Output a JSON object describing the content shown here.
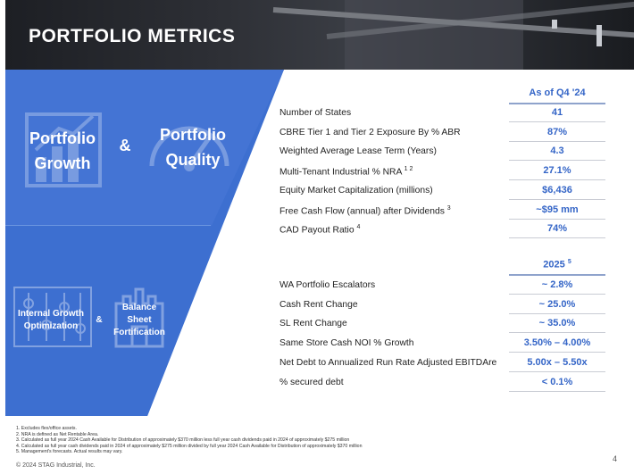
{
  "header": {
    "title": "PORTFOLIO METRICS"
  },
  "left_panel": {
    "portfolio_growth": [
      "Portfolio",
      "Growth"
    ],
    "ampersand_top": "&",
    "portfolio_quality": [
      "Portfolio",
      "Quality"
    ],
    "internal_growth": [
      "Internal Growth",
      "Optimization"
    ],
    "ampersand_bottom": "&",
    "balance_sheet": [
      "Balance",
      "Sheet",
      "Fortification"
    ]
  },
  "table_q4": {
    "heading": "As of Q4 '24",
    "rows": [
      {
        "label": "Number of States",
        "sup": "",
        "value": "41"
      },
      {
        "label": "CBRE Tier 1 and Tier 2 Exposure By % ABR",
        "sup": "",
        "value": "87%"
      },
      {
        "label": "Weighted Average Lease Term (Years)",
        "sup": "",
        "value": "4.3"
      },
      {
        "label": "Multi-Tenant Industrial % NRA",
        "sup": "1 2",
        "value": "27.1%"
      },
      {
        "label": "Equity Market Capitalization (millions)",
        "sup": "",
        "value": "$6,436"
      },
      {
        "label": "Free Cash Flow (annual) after Dividends",
        "sup": "3",
        "value": "~$95 mm"
      },
      {
        "label": "CAD Payout Ratio",
        "sup": "4",
        "value": "74%"
      }
    ]
  },
  "table_2025": {
    "heading": "2025",
    "heading_sup": "5",
    "rows": [
      {
        "label": "WA Portfolio Escalators",
        "value": "~ 2.8%"
      },
      {
        "label": "Cash Rent Change",
        "value": "~ 25.0%"
      },
      {
        "label": "SL Rent Change",
        "value": "~ 35.0%"
      },
      {
        "label": "Same Store Cash NOI % Growth",
        "value": "3.50% – 4.00%"
      },
      {
        "label": "Net Debt to Annualized Run Rate Adjusted EBITDAre",
        "value": "5.00x – 5.50x"
      },
      {
        "label": "% secured debt",
        "value": "< 0.1%"
      }
    ]
  },
  "footnotes": [
    "1.  Excludes flex/office assets.",
    "2.  NRA is defined as Net Rentable Area.",
    "3.  Calculated as full year 2024 Cash Available for Distribution of approximately $370 million less full year cash dividends paid in 2024 of approximately $275 million",
    "4.  Calculated as full year cash dividends paid in 2024 of approximately $275 million divided by full year 2024 Cash Available for Distribution of approximately $370 million",
    "5.  Management's forecasts. Actual results may vary."
  ],
  "copyright": "© 2024 STAG Industrial, Inc.",
  "page_number": "4",
  "colors": {
    "accent_blue": "#3465c7",
    "panel_blue": "#3d6fd0",
    "header_dark": "#2a2c31"
  }
}
